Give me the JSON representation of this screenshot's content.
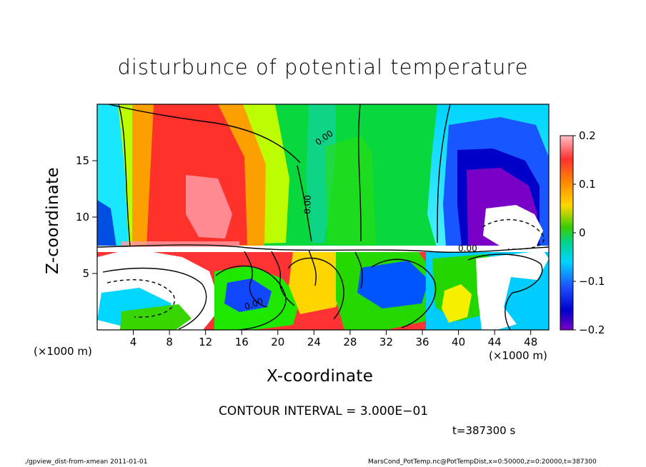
{
  "chart_data": {
    "type": "heatmap",
    "title": "disturbunce of potential temperature",
    "xlabel": "X-coordinate",
    "ylabel": "Z-coordinate",
    "x_unit_label_left": "(×1000 m)",
    "x_unit_label_right": "(×1000 m)",
    "xlim": [
      0,
      50
    ],
    "ylim": [
      0,
      20
    ],
    "xticks": [
      "4",
      "8",
      "12",
      "16",
      "20",
      "24",
      "28",
      "32",
      "36",
      "40",
      "44",
      "48"
    ],
    "xtick_values": [
      4,
      8,
      12,
      16,
      20,
      24,
      28,
      32,
      36,
      40,
      44,
      48
    ],
    "yticks": [
      "5",
      "10",
      "15"
    ],
    "ytick_values": [
      5,
      10,
      15
    ],
    "colorbar": {
      "range": [
        -0.2,
        0.2
      ],
      "ticks": [
        "0.2",
        "0.1",
        "0",
        "−0.1",
        "−0.2"
      ],
      "tick_values": [
        0.2,
        0.1,
        0,
        -0.1,
        -0.2
      ]
    },
    "contour_labels": [
      "0.00",
      "0.00",
      "0.00",
      "0.00"
    ],
    "contour_interval_text": "CONTOUR INTERVAL = 3.000E−01",
    "time_text": "t=387300 s",
    "footer_left": "./gpview_dist-from-xmean   2011-01-01",
    "footer_right": "MarsCond_PotTemp.nc@PotTempDist,x=0:50000,z=0:20000,t=387300"
  }
}
